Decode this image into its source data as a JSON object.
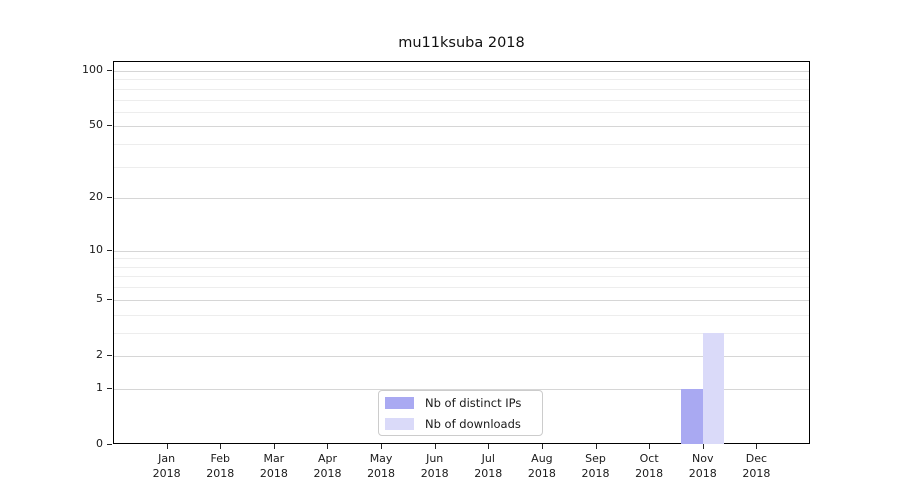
{
  "chart_data": {
    "type": "bar",
    "title": "mu11ksuba 2018",
    "categories": [
      {
        "month": "Jan",
        "year": "2018"
      },
      {
        "month": "Feb",
        "year": "2018"
      },
      {
        "month": "Mar",
        "year": "2018"
      },
      {
        "month": "Apr",
        "year": "2018"
      },
      {
        "month": "May",
        "year": "2018"
      },
      {
        "month": "Jun",
        "year": "2018"
      },
      {
        "month": "Jul",
        "year": "2018"
      },
      {
        "month": "Aug",
        "year": "2018"
      },
      {
        "month": "Sep",
        "year": "2018"
      },
      {
        "month": "Oct",
        "year": "2018"
      },
      {
        "month": "Nov",
        "year": "2018"
      },
      {
        "month": "Dec",
        "year": "2018"
      }
    ],
    "series": [
      {
        "name": "Nb of distinct IPs",
        "color": "#a9a9f2",
        "values": [
          0,
          0,
          0,
          0,
          0,
          0,
          0,
          0,
          0,
          0,
          1,
          0
        ]
      },
      {
        "name": "Nb of downloads",
        "color": "#dadaf9",
        "values": [
          0,
          0,
          0,
          0,
          0,
          0,
          0,
          0,
          0,
          0,
          3,
          0
        ]
      }
    ],
    "y_axis": {
      "scale": "log1p",
      "ticks": [
        0,
        1,
        2,
        5,
        10,
        20,
        50,
        100
      ],
      "minor_ticks": [
        3,
        4,
        6,
        7,
        8,
        9,
        30,
        40,
        60,
        70,
        80,
        90
      ],
      "ylim": [
        0,
        112
      ]
    },
    "grid": "horizontal",
    "legend": {
      "position": "lower center"
    }
  }
}
